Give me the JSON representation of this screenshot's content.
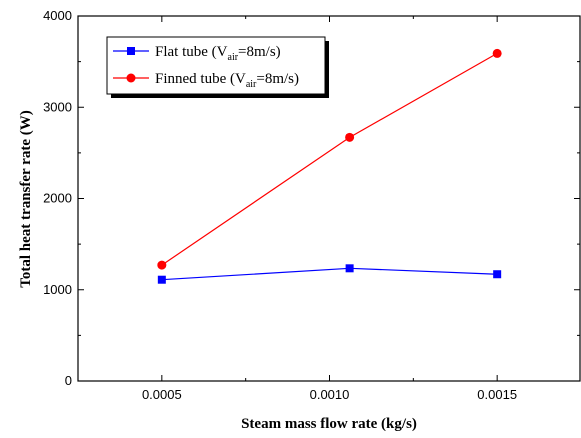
{
  "chart_data": {
    "type": "line",
    "xlabel": "Steam mass flow rate (kg/s)",
    "ylabel": "Total heat transfer rate (W)",
    "xlim": [
      0.00025,
      0.00175
    ],
    "ylim": [
      0,
      4000
    ],
    "x_ticks": [
      0.0005,
      0.001,
      0.0015
    ],
    "x_tick_labels": [
      "0.0005",
      "0.0010",
      "0.0015"
    ],
    "y_ticks": [
      0,
      1000,
      2000,
      3000,
      4000
    ],
    "y_tick_labels": [
      "0",
      "1000",
      "2000",
      "3000",
      "4000"
    ],
    "grid": false,
    "legend_position": "top-left",
    "series": [
      {
        "legend_prefix": "Flat tube (V",
        "legend_subscript": "air",
        "legend_suffix": "=8m/s)",
        "color": "#0000ff",
        "marker": "square",
        "x": [
          0.0005,
          0.00106,
          0.0015
        ],
        "y": [
          1110,
          1235,
          1170
        ]
      },
      {
        "legend_prefix": "Finned tube (V",
        "legend_subscript": "air",
        "legend_suffix": "=8m/s)",
        "color": "#ff0000",
        "marker": "circle",
        "x": [
          0.0005,
          0.00106,
          0.0015
        ],
        "y": [
          1270,
          2670,
          3590
        ]
      }
    ]
  }
}
